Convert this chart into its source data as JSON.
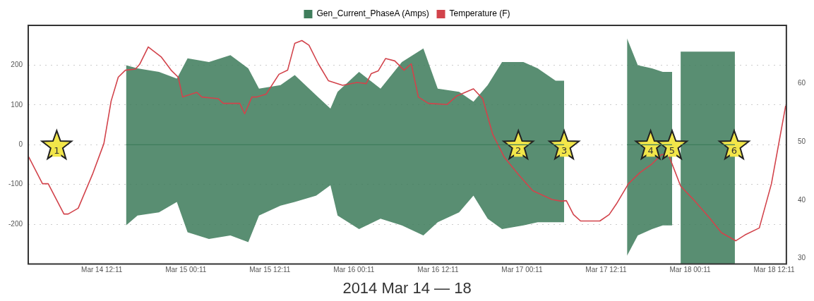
{
  "chart_data": {
    "type": "line",
    "xlabel": "2014 Mar 14 — 18",
    "xlim": [
      "2014-03-14T01:41",
      "2014-03-18T13:56"
    ],
    "xticks": [
      {
        "value": "2014-03-14T12:11",
        "label": "Mar 14 12:11"
      },
      {
        "value": "2014-03-15T00:11",
        "label": "Mar 15 00:11"
      },
      {
        "value": "2014-03-15T12:11",
        "label": "Mar 15 12:11"
      },
      {
        "value": "2014-03-16T00:11",
        "label": "Mar 16 00:11"
      },
      {
        "value": "2014-03-16T12:11",
        "label": "Mar 16 12:11"
      },
      {
        "value": "2014-03-17T00:11",
        "label": "Mar 17 00:11"
      },
      {
        "value": "2014-03-17T12:11",
        "label": "Mar 17 12:11"
      },
      {
        "value": "2014-03-18T00:11",
        "label": "Mar 18 00:11"
      },
      {
        "value": "2014-03-18T12:11",
        "label": "Mar 18 12:11"
      }
    ],
    "ylim": [
      -300,
      300
    ],
    "yticks": [
      -200,
      -100,
      0,
      100,
      200
    ],
    "y2lim": [
      29,
      70
    ],
    "y2ticks": [
      30,
      40,
      50,
      60
    ],
    "grid": "y",
    "legend": "top",
    "marker": "none",
    "line_style": "solid",
    "series": [
      {
        "name": "Gen_Current_PhaseA (Amps)",
        "color": "#3f7d5c",
        "x": [
          "2014-03-14T15:39",
          "2014-03-14T17:17",
          "2014-03-14T20:21",
          "2014-03-14T22:54",
          "2014-03-15T00:26",
          "2014-03-15T03:29",
          "2014-03-15T06:33",
          "2014-03-15T09:06",
          "2014-03-15T10:38",
          "2014-03-15T13:42",
          "2014-03-15T15:44",
          "2014-03-15T18:48",
          "2014-03-15T20:50",
          "2014-03-15T21:51",
          "2014-03-16T00:55",
          "2014-03-16T03:59",
          "2014-03-16T07:02",
          "2014-03-16T10:06",
          "2014-03-16T12:09",
          "2014-03-16T15:12",
          "2014-03-16T17:15",
          "2014-03-16T19:17",
          "2014-03-16T21:20",
          "2014-03-17T00:23",
          "2014-03-17T02:26",
          "2014-03-17T04:59",
          "2014-03-17T06:12",
          "2014-03-17T10:35",
          "2014-03-17T15:11",
          "2014-03-17T16:43",
          "2014-03-17T18:45",
          "2014-03-17T20:17",
          "2014-03-17T21:37",
          "2014-03-17T22:13",
          "2014-03-17T22:50",
          "2014-03-18T06:35"
        ],
        "values": [
          0,
          0,
          0,
          0,
          0,
          0,
          0,
          0,
          0,
          0,
          0,
          0,
          0,
          0,
          0,
          0,
          0,
          0,
          0,
          0,
          0,
          0,
          0,
          0,
          0,
          0,
          0,
          null,
          0,
          0,
          0,
          0,
          0,
          null,
          0,
          0
        ],
        "upper": [
          200,
          192,
          183,
          166,
          217,
          208,
          225,
          192,
          141,
          150,
          175,
          124,
          91,
          133,
          183,
          141,
          208,
          242,
          141,
          133,
          108,
          150,
          208,
          208,
          192,
          161,
          161,
          null,
          267,
          200,
          192,
          183,
          183,
          null,
          234,
          234
        ],
        "lower": [
          -203,
          -178,
          -170,
          -144,
          -220,
          -237,
          -228,
          -245,
          -178,
          -153,
          -144,
          -128,
          -102,
          -178,
          -212,
          -186,
          -203,
          -228,
          -195,
          -170,
          -128,
          -186,
          -212,
          -203,
          -195,
          -195,
          -195,
          null,
          -279,
          -228,
          -212,
          -203,
          -203,
          null,
          -299,
          -299
        ]
      },
      {
        "name": "Temperature (F)",
        "color": "#d2434b",
        "axis": "y2",
        "x": [
          "2014-03-14T01:45",
          "2014-03-14T03:43",
          "2014-03-14T04:32",
          "2014-03-14T06:47",
          "2014-03-14T07:23",
          "2014-03-14T08:49",
          "2014-03-14T10:51",
          "2014-03-14T12:29",
          "2014-03-14T13:31",
          "2014-03-14T14:32",
          "2014-03-14T15:33",
          "2014-03-14T16:59",
          "2014-03-14T17:35",
          "2014-03-14T18:49",
          "2014-03-14T20:39",
          "2014-03-14T22:05",
          "2014-03-14T23:06",
          "2014-03-14T23:43",
          "2014-03-15T01:45",
          "2014-03-15T02:28",
          "2014-03-15T04:49",
          "2014-03-15T05:32",
          "2014-03-15T07:53",
          "2014-03-15T08:35",
          "2014-03-15T09:37",
          "2014-03-15T10:20",
          "2014-03-15T11:39",
          "2014-03-15T13:29",
          "2014-03-15T14:43",
          "2014-03-15T15:44",
          "2014-03-15T16:45",
          "2014-03-15T17:46",
          "2014-03-15T19:06",
          "2014-03-15T20:32",
          "2014-03-15T22:34",
          "2014-03-16T00:37",
          "2014-03-16T01:56",
          "2014-03-16T02:39",
          "2014-03-16T03:40",
          "2014-03-16T04:42",
          "2014-03-16T06:01",
          "2014-03-16T07:21",
          "2014-03-16T08:22",
          "2014-03-16T09:23",
          "2014-03-16T10:49",
          "2014-03-16T13:28",
          "2014-03-16T14:54",
          "2014-03-16T17:15",
          "2014-03-16T18:34",
          "2014-03-16T20:00",
          "2014-03-16T21:38",
          "2014-03-16T23:40",
          "2014-03-17T01:43",
          "2014-03-17T04:28",
          "2014-03-17T05:48",
          "2014-03-17T06:31",
          "2014-03-17T07:32",
          "2014-03-17T08:33",
          "2014-03-17T11:18",
          "2014-03-17T12:38",
          "2014-03-17T13:39",
          "2014-03-17T15:23",
          "2014-03-17T17:01",
          "2014-03-17T18:45",
          "2014-03-17T20:05",
          "2014-03-17T21:06",
          "2014-03-17T22:50",
          "2014-03-18T00:53",
          "2014-03-18T02:55",
          "2014-03-18T04:39",
          "2014-03-18T06:42",
          "2014-03-18T08:01",
          "2014-03-18T10:04",
          "2014-03-18T11:48",
          "2014-03-18T13:50"
        ],
        "values": [
          47.4,
          42.8,
          42.8,
          37.6,
          37.6,
          38.6,
          44.4,
          49.7,
          57.0,
          61.1,
          62.3,
          62.5,
          63.3,
          66.3,
          64.6,
          62.3,
          61.1,
          57.7,
          58.5,
          57.7,
          57.4,
          56.6,
          56.6,
          54.8,
          57.7,
          57.7,
          58.2,
          61.6,
          62.3,
          66.9,
          67.4,
          66.6,
          63.4,
          60.5,
          59.7,
          60.2,
          60.0,
          61.7,
          62.2,
          64.3,
          63.9,
          62.3,
          63.4,
          57.7,
          56.6,
          56.4,
          57.9,
          59.1,
          57.4,
          51.3,
          47.4,
          44.4,
          41.6,
          40.1,
          39.8,
          39.9,
          37.5,
          36.4,
          36.4,
          37.5,
          39.3,
          42.8,
          44.7,
          46.2,
          47.8,
          47.8,
          42.4,
          39.8,
          37.0,
          34.4,
          33.0,
          34.0,
          35.2,
          42.8,
          56.2
        ]
      }
    ],
    "annotations": [
      {
        "text": "1",
        "x": "2014-03-14T05:45",
        "y": 0
      },
      {
        "text": "2",
        "x": "2014-03-16T23:40",
        "y": 0
      },
      {
        "text": "3",
        "x": "2014-03-17T06:12",
        "y": 0
      },
      {
        "text": "4",
        "x": "2014-03-17T18:33",
        "y": 0
      },
      {
        "text": "5",
        "x": "2014-03-17T21:37",
        "y": 0
      },
      {
        "text": "6",
        "x": "2014-03-18T06:29",
        "y": 0
      }
    ]
  }
}
